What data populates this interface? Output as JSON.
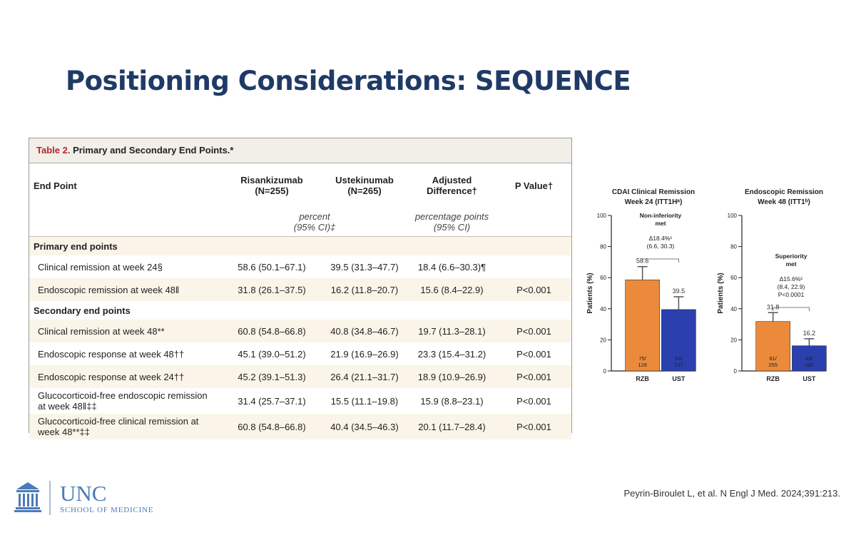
{
  "title": "Positioning Considerations: SEQUENCE",
  "table": {
    "caption_label": "Table 2.",
    "caption": "Primary and Secondary End Points.*",
    "columns": [
      [
        "End Point"
      ],
      [
        "Risankizumab",
        "(N=255)"
      ],
      [
        "Ustekinumab",
        "(N=265)"
      ],
      [
        "Adjusted",
        "Difference†"
      ],
      [
        "P Value†"
      ]
    ],
    "units": [
      [
        "percent",
        "(95% CI)‡"
      ],
      [
        "percentage points",
        "(95% CI)"
      ]
    ],
    "sections": [
      {
        "heading": "Primary end points",
        "rows": [
          [
            "Clinical remission at week 24§",
            "58.6 (50.1–67.1)",
            "39.5 (31.3–47.7)",
            "18.4 (6.6–30.3)¶"
          ],
          [
            "Endoscopic remission at week 48‖",
            "31.8 (26.1–37.5)",
            "16.2 (11.8–20.7)",
            "15.6 (8.4–22.9)",
            "P<0.001"
          ]
        ]
      },
      {
        "heading": "Secondary end points",
        "rows": [
          [
            "Clinical remission at week 48**",
            "60.8 (54.8–66.8)",
            "40.8 (34.8–46.7)",
            "19.7 (11.3–28.1)",
            "P<0.001"
          ],
          [
            "Endoscopic response at week 48††",
            "45.1 (39.0–51.2)",
            "21.9 (16.9–26.9)",
            "23.3 (15.4–31.2)",
            "P<0.001"
          ],
          [
            "Endoscopic response at week 24††",
            "45.2 (39.1–51.3)",
            "26.4 (21.1–31.7)",
            "18.9 (10.9–26.9)",
            "P<0.001"
          ],
          [
            "Glucocorticoid-free endoscopic remission at week 48‖‡‡",
            "31.4 (25.7–37.1)",
            "15.5 (11.1–19.8)",
            "15.9 (8.8–23.1)",
            "P<0.001"
          ],
          [
            "Glucocorticoid-free clinical remission at week 48**‡‡",
            "60.8 (54.8–66.8)",
            "40.4 (34.5–46.3)",
            "20.1 (11.7–28.4)",
            "P<0.001"
          ]
        ]
      }
    ]
  },
  "chart_data": [
    {
      "type": "bar",
      "title": [
        "CDAI Clinical Remission",
        "Week 24 (ITT1Hᵃ)"
      ],
      "ylabel": "Patients (%)",
      "categories": [
        "RZB",
        "UST"
      ],
      "values": [
        58.6,
        39.5
      ],
      "errors": [
        8.5,
        8.2
      ],
      "colors": [
        "#ec8a3c",
        "#2b3fae"
      ],
      "inner_labels": [
        [
          "75/",
          "128"
        ],
        [
          "54/",
          "137"
        ]
      ],
      "annotations": [
        [
          "Non-inferiority",
          "met"
        ],
        [
          "Δ18.4%ᶜ",
          "(6.6, 30.3)"
        ]
      ],
      "ylim": [
        0,
        100
      ],
      "yticks": [
        0,
        20,
        40,
        60,
        80,
        100
      ]
    },
    {
      "type": "bar",
      "title": [
        "Endoscopic Remission",
        "Week 48 (ITT1ᵇ)"
      ],
      "ylabel": "Patients (%)",
      "categories": [
        "RZB",
        "UST"
      ],
      "values": [
        31.8,
        16.2
      ],
      "errors": [
        5.7,
        4.5
      ],
      "colors": [
        "#ec8a3c",
        "#2b3fae"
      ],
      "inner_labels": [
        [
          "81/",
          "255"
        ],
        [
          "43/",
          "265"
        ]
      ],
      "annotations": [
        [
          "Superiority",
          "met"
        ],
        [
          "Δ15.6%ᶜ",
          "(8.4, 22.9)",
          "P<0.0001"
        ]
      ],
      "ylim": [
        0,
        100
      ],
      "yticks": [
        0,
        20,
        40,
        60,
        80,
        100
      ]
    }
  ],
  "logo": {
    "name": "UNC",
    "subtitle": "SCHOOL OF MEDICINE"
  },
  "citation": "Peyrin-Biroulet L, et al. N Engl J Med. 2024;391:213."
}
